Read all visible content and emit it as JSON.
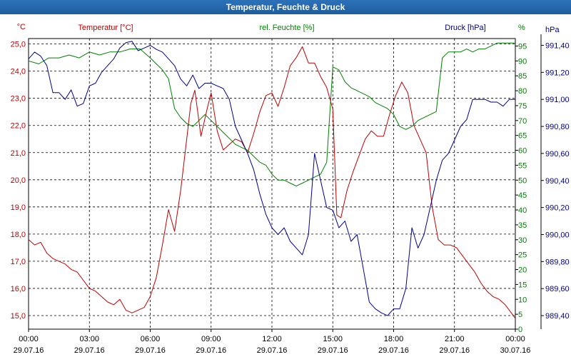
{
  "window": {
    "title": "Temperatur, Feuchte & Druck"
  },
  "chart_data": {
    "type": "line",
    "title": "Temperatur, Feuchte & Druck",
    "grid": true,
    "x_ticks": [
      {
        "time": "00:00",
        "date": "29.07.16"
      },
      {
        "time": "03:00",
        "date": "29.07.16"
      },
      {
        "time": "06:00",
        "date": "29.07.16"
      },
      {
        "time": "09:00",
        "date": "29.07.16"
      },
      {
        "time": "12:00",
        "date": "29.07.16"
      },
      {
        "time": "15:00",
        "date": "29.07.16"
      },
      {
        "time": "18:00",
        "date": "29.07.16"
      },
      {
        "time": "21:00",
        "date": "29.07.16"
      },
      {
        "time": "00:00",
        "date": "30.07.16"
      }
    ],
    "x_hours_range": [
      0,
      24
    ],
    "axes": {
      "temperature": {
        "label": "Temperatur [°C]",
        "unit": "°C",
        "color": "#c00000",
        "ylim": [
          14.5,
          25.2
        ],
        "ticks": [
          "15,0",
          "16,0",
          "17,0",
          "18,0",
          "19,0",
          "20,0",
          "21,0",
          "22,0",
          "23,0",
          "24,0",
          "25,0"
        ]
      },
      "humidity": {
        "label": "rel. Feuchte [%]",
        "unit": "%",
        "color": "#008000",
        "ylim": [
          0,
          97.5
        ],
        "ticks": [
          "0",
          "5",
          "10",
          "15",
          "20",
          "25",
          "30",
          "35",
          "40",
          "45",
          "50",
          "55",
          "60",
          "65",
          "70",
          "75",
          "80",
          "85",
          "90",
          "95"
        ]
      },
      "pressure": {
        "label": "Druck [hPa]",
        "unit": "hPa",
        "color": "#00008b",
        "ylim": [
          989.3,
          991.45
        ],
        "ticks": [
          "989,40",
          "989,60",
          "989,80",
          "990,00",
          "990,20",
          "990,40",
          "990,60",
          "990,80",
          "991,00",
          "991,20",
          "991,40"
        ]
      }
    },
    "series": [
      {
        "name": "Temperatur [°C]",
        "axis": "temperature",
        "color": "#c00000",
        "x": [
          0,
          0.3,
          0.6,
          0.9,
          1.2,
          1.5,
          1.8,
          2.1,
          2.4,
          2.7,
          3.0,
          3.3,
          3.6,
          3.9,
          4.2,
          4.5,
          4.8,
          5.1,
          5.4,
          5.7,
          6.0,
          6.3,
          6.6,
          6.9,
          7.2,
          7.5,
          7.8,
          8.0,
          8.2,
          8.5,
          8.8,
          9.0,
          9.3,
          9.6,
          9.9,
          10.2,
          10.5,
          10.8,
          11.1,
          11.4,
          11.7,
          12.0,
          12.3,
          12.6,
          12.9,
          13.2,
          13.5,
          13.8,
          14.1,
          14.4,
          14.7,
          15.0,
          15.2,
          15.4,
          15.7,
          16.0,
          16.3,
          16.6,
          16.9,
          17.2,
          17.5,
          17.8,
          18.1,
          18.4,
          18.7,
          19.0,
          19.3,
          19.6,
          19.9,
          20.2,
          20.5,
          20.8,
          21.1,
          21.4,
          21.7,
          22.0,
          22.3,
          22.6,
          22.9,
          23.2,
          23.5,
          23.8,
          24.0
        ],
        "values": [
          17.8,
          17.6,
          17.7,
          17.3,
          17.1,
          17.0,
          16.9,
          16.7,
          16.6,
          16.3,
          16.0,
          15.9,
          15.7,
          15.5,
          15.4,
          15.6,
          15.2,
          15.1,
          15.2,
          15.3,
          15.7,
          16.4,
          17.6,
          18.9,
          18.1,
          19.6,
          21.5,
          22.8,
          23.3,
          21.6,
          22.6,
          23.2,
          21.8,
          21.1,
          21.3,
          21.5,
          21.4,
          21.0,
          21.7,
          22.5,
          23.1,
          23.2,
          22.7,
          23.4,
          24.2,
          24.5,
          24.9,
          24.3,
          24.3,
          23.8,
          23.4,
          22.6,
          18.7,
          18.6,
          19.6,
          20.3,
          20.9,
          21.5,
          21.8,
          21.6,
          21.6,
          22.4,
          23.1,
          23.6,
          23.2,
          22.0,
          21.5,
          21.0,
          19.0,
          17.8,
          17.6,
          17.6,
          17.5,
          17.2,
          16.9,
          16.6,
          16.2,
          15.9,
          15.7,
          15.6,
          15.4,
          15.1,
          14.9
        ]
      },
      {
        "name": "rel. Feuchte [%]",
        "axis": "humidity",
        "color": "#008000",
        "x": [
          0,
          0.5,
          1.0,
          1.5,
          2.0,
          2.5,
          3.0,
          3.5,
          4.0,
          4.5,
          5.0,
          5.5,
          6.0,
          6.3,
          6.6,
          6.9,
          7.2,
          7.5,
          7.8,
          8.1,
          8.4,
          8.7,
          9.0,
          9.3,
          9.6,
          9.9,
          10.2,
          10.5,
          10.8,
          11.1,
          11.4,
          11.7,
          12.0,
          12.3,
          12.6,
          12.9,
          13.2,
          13.5,
          13.8,
          14.1,
          14.4,
          14.7,
          15.0,
          15.3,
          15.6,
          15.9,
          16.2,
          16.5,
          16.8,
          17.1,
          17.4,
          17.7,
          18.0,
          18.3,
          18.6,
          18.9,
          19.2,
          19.5,
          19.8,
          20.1,
          20.4,
          20.7,
          21.0,
          21.3,
          21.6,
          21.9,
          22.2,
          22.5,
          22.8,
          23.1,
          23.4,
          23.7,
          24.0
        ],
        "values": [
          90,
          89,
          91,
          91,
          92,
          91,
          93,
          92,
          93,
          93,
          94,
          94,
          91,
          89,
          87,
          84,
          74,
          71,
          69,
          68,
          70,
          72,
          70,
          68,
          66,
          64,
          62,
          61,
          60,
          58,
          56,
          55,
          52,
          50,
          50,
          49,
          48,
          49,
          50,
          51,
          52,
          56,
          88,
          87,
          83,
          81,
          80,
          79,
          78,
          76,
          75,
          74,
          72,
          68,
          67,
          68,
          70,
          71,
          72,
          73,
          91,
          93,
          93,
          93,
          94,
          93,
          94,
          94,
          95,
          96,
          96,
          96,
          96
        ]
      },
      {
        "name": "Druck [hPa]",
        "axis": "pressure",
        "color": "#00008b",
        "x": [
          0,
          0.3,
          0.6,
          0.9,
          1.2,
          1.5,
          1.8,
          2.1,
          2.4,
          2.7,
          3.0,
          3.3,
          3.6,
          3.9,
          4.2,
          4.5,
          4.8,
          5.1,
          5.4,
          5.7,
          6.0,
          6.3,
          6.6,
          6.9,
          7.2,
          7.5,
          7.8,
          8.1,
          8.4,
          8.7,
          9.0,
          9.3,
          9.6,
          9.9,
          10.2,
          10.5,
          10.8,
          11.1,
          11.4,
          11.7,
          12.0,
          12.3,
          12.6,
          12.9,
          13.2,
          13.5,
          13.8,
          14.1,
          14.4,
          14.7,
          15.0,
          15.3,
          15.6,
          15.9,
          16.2,
          16.5,
          16.8,
          17.1,
          17.4,
          17.7,
          18.0,
          18.3,
          18.6,
          18.9,
          19.2,
          19.5,
          19.8,
          20.1,
          20.4,
          20.7,
          21.0,
          21.3,
          21.6,
          21.9,
          22.2,
          22.5,
          22.8,
          23.1,
          23.4,
          23.7,
          24.0
        ],
        "values": [
          991.3,
          991.35,
          991.32,
          991.25,
          991.05,
          991.05,
          991.0,
          991.07,
          990.95,
          990.97,
          991.1,
          991.12,
          991.2,
          991.25,
          991.3,
          991.38,
          991.42,
          991.43,
          991.36,
          991.38,
          991.4,
          991.37,
          991.35,
          991.3,
          991.25,
          991.15,
          991.1,
          991.18,
          991.08,
          991.12,
          991.12,
          991.1,
          991.08,
          991.0,
          990.8,
          990.7,
          990.6,
          990.48,
          990.3,
          990.15,
          990.05,
          990.0,
          990.05,
          989.95,
          989.9,
          989.85,
          990.0,
          990.6,
          990.4,
          990.2,
          990.18,
          990.05,
          990.1,
          989.95,
          990.0,
          989.75,
          989.5,
          989.45,
          989.42,
          989.4,
          989.45,
          989.45,
          989.6,
          990.05,
          989.9,
          990.0,
          990.2,
          990.4,
          990.55,
          990.6,
          990.7,
          990.8,
          990.85,
          991.0,
          991.0,
          991.0,
          990.98,
          990.98,
          990.95,
          991.0,
          991.0
        ]
      }
    ]
  }
}
